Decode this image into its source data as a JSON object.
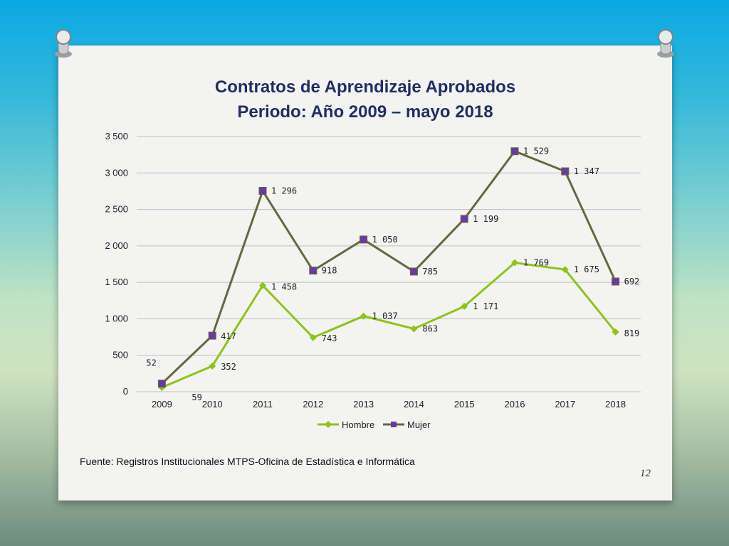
{
  "slide": {
    "title_line1": "Contratos de Aprendizaje Aprobados",
    "title_line2": "Periodo: Año 2009 – mayo  2018",
    "source": "Fuente: Registros Institucionales MTPS-Oficina de Estadística e Informática",
    "page_number": "12"
  },
  "colors": {
    "hombre": "#8dc21f",
    "mujer": "#65673f",
    "mujer_marker": "#6a3aa0",
    "title": "#1f2f5e",
    "grid": "#bfbfbf"
  },
  "chart_data": {
    "type": "line",
    "title": "Contratos de Aprendizaje Aprobados Periodo: Año 2009 – mayo  2018",
    "xlabel": "",
    "ylabel": "",
    "ylim": [
      0,
      3500
    ],
    "yticks": [
      0,
      500,
      1000,
      1500,
      2000,
      2500,
      3000,
      3500
    ],
    "ytick_labels": [
      "0",
      "500",
      "1 000",
      "1 500",
      "2 000",
      "2 500",
      "3 000",
      "3 500"
    ],
    "categories": [
      "2009",
      "2010",
      "2011",
      "2012",
      "2013",
      "2014",
      "2015",
      "2016",
      "2017",
      "2018"
    ],
    "grid": true,
    "legend_position": "bottom",
    "stacked": true,
    "series": [
      {
        "name": "Hombre",
        "values": [
          59,
          352,
          1458,
          743,
          1037,
          863,
          1171,
          1769,
          1675,
          819
        ],
        "labels": [
          "59",
          "352",
          "1 458",
          "743",
          "1 037",
          "863",
          "1 171",
          "1 769",
          "1 675",
          "819"
        ]
      },
      {
        "name": "Mujer",
        "values": [
          52,
          417,
          1296,
          918,
          1050,
          785,
          1199,
          1529,
          1347,
          692
        ],
        "labels": [
          "52",
          "417",
          "1 296",
          "918",
          "1 050",
          "785",
          "1 199",
          "1 529",
          "1 347",
          "692"
        ]
      }
    ]
  }
}
